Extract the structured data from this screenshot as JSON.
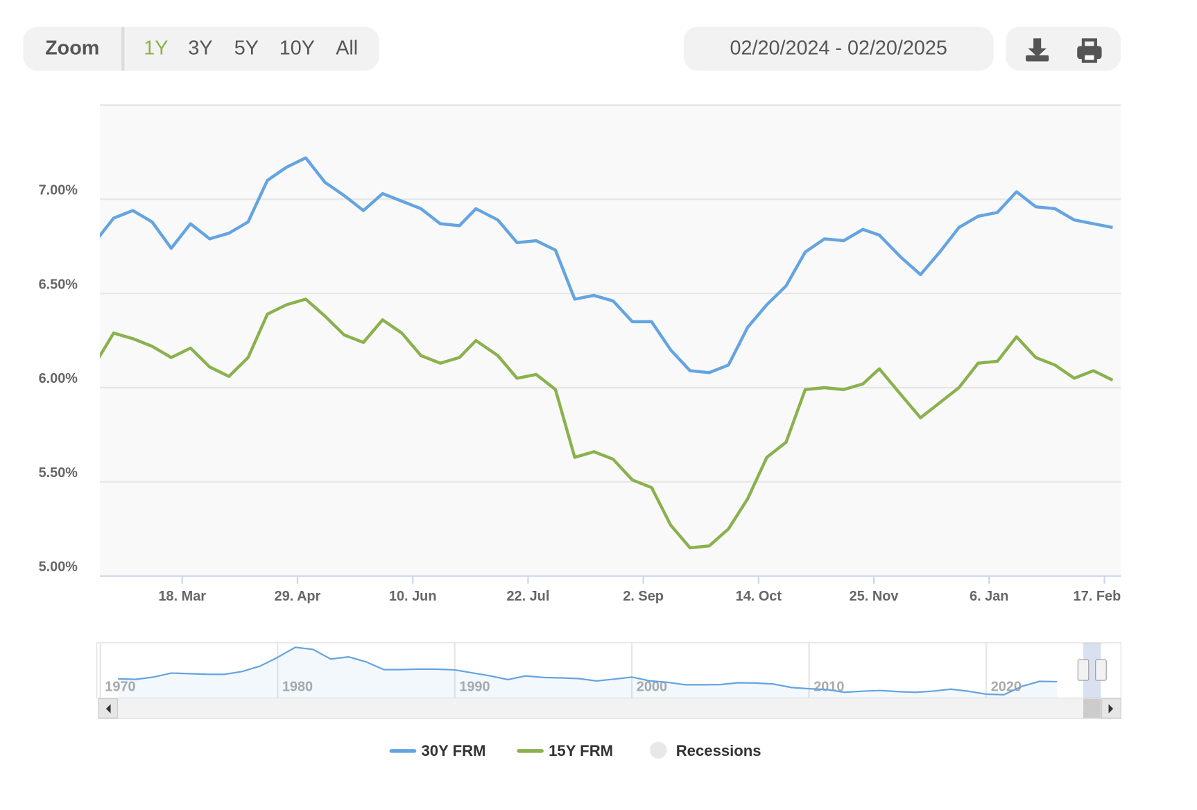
{
  "toolbar": {
    "zoom_label": "Zoom",
    "zoom_buttons": [
      "1Y",
      "3Y",
      "5Y",
      "10Y",
      "All"
    ],
    "selected": "1Y",
    "selected_color": "#8bb14e",
    "date_range": "02/20/2024 - 02/20/2025"
  },
  "chart_data": {
    "type": "line",
    "x": [
      "2024-02-15",
      "2024-02-22",
      "2024-02-29",
      "2024-03-07",
      "2024-03-14",
      "2024-03-21",
      "2024-03-28",
      "2024-04-04",
      "2024-04-11",
      "2024-04-18",
      "2024-04-25",
      "2024-05-02",
      "2024-05-09",
      "2024-05-16",
      "2024-05-23",
      "2024-05-30",
      "2024-06-06",
      "2024-06-13",
      "2024-06-20",
      "2024-06-27",
      "2024-07-03",
      "2024-07-11",
      "2024-07-18",
      "2024-07-25",
      "2024-08-01",
      "2024-08-08",
      "2024-08-15",
      "2024-08-22",
      "2024-08-29",
      "2024-09-05",
      "2024-09-12",
      "2024-09-19",
      "2024-09-26",
      "2024-10-03",
      "2024-10-10",
      "2024-10-17",
      "2024-10-24",
      "2024-10-31",
      "2024-11-07",
      "2024-11-14",
      "2024-11-21",
      "2024-11-27",
      "2024-12-05",
      "2024-12-12",
      "2024-12-19",
      "2024-12-26",
      "2025-01-02",
      "2025-01-09",
      "2025-01-16",
      "2025-01-23",
      "2025-01-30",
      "2025-02-06",
      "2025-02-13",
      "2025-02-20"
    ],
    "series": [
      {
        "name": "30Y FRM",
        "color": "#64a4e0",
        "values": [
          6.77,
          6.9,
          6.94,
          6.88,
          6.74,
          6.87,
          6.79,
          6.82,
          6.88,
          7.1,
          7.17,
          7.22,
          7.09,
          7.02,
          6.94,
          7.03,
          6.99,
          6.95,
          6.87,
          6.86,
          6.95,
          6.89,
          6.77,
          6.78,
          6.73,
          6.47,
          6.49,
          6.46,
          6.35,
          6.35,
          6.2,
          6.09,
          6.08,
          6.12,
          6.32,
          6.44,
          6.54,
          6.72,
          6.79,
          6.78,
          6.84,
          6.81,
          6.69,
          6.6,
          6.72,
          6.85,
          6.91,
          6.93,
          7.04,
          6.96,
          6.95,
          6.89,
          6.87,
          6.85
        ]
      },
      {
        "name": "15Y FRM",
        "color": "#8bb14e",
        "values": [
          6.12,
          6.29,
          6.26,
          6.22,
          6.16,
          6.21,
          6.11,
          6.06,
          6.16,
          6.39,
          6.44,
          6.47,
          6.38,
          6.28,
          6.24,
          6.36,
          6.29,
          6.17,
          6.13,
          6.16,
          6.25,
          6.17,
          6.05,
          6.07,
          5.99,
          5.63,
          5.66,
          5.62,
          5.51,
          5.47,
          5.27,
          5.15,
          5.16,
          5.25,
          5.41,
          5.63,
          5.71,
          5.99,
          6.0,
          5.99,
          6.02,
          6.1,
          5.96,
          5.84,
          5.92,
          6.0,
          6.13,
          6.14,
          6.27,
          6.16,
          6.12,
          6.05,
          6.09,
          6.04
        ]
      }
    ],
    "recessions": {
      "name": "Recessions",
      "color": "#e8e8e8"
    },
    "xlim": [
      "2024-02-17",
      "2025-02-23"
    ],
    "xticks": [
      {
        "value": "2024-03-18",
        "label": "18. Mar"
      },
      {
        "value": "2024-04-29",
        "label": "29. Apr"
      },
      {
        "value": "2024-06-10",
        "label": "10. Jun"
      },
      {
        "value": "2024-07-22",
        "label": "22. Jul"
      },
      {
        "value": "2024-09-02",
        "label": "2. Sep"
      },
      {
        "value": "2024-10-14",
        "label": "14. Oct"
      },
      {
        "value": "2024-11-25",
        "label": "25. Nov"
      },
      {
        "value": "2025-01-06",
        "label": "6. Jan"
      },
      {
        "value": "2025-02-17",
        "label": "17. Feb"
      }
    ],
    "ylim": [
      5,
      7.5
    ],
    "yticks": [
      {
        "value": 5,
        "label": "5.00%"
      },
      {
        "value": 5.5,
        "label": "5.50%"
      },
      {
        "value": 6,
        "label": "6.00%"
      },
      {
        "value": 6.5,
        "label": "6.50%"
      },
      {
        "value": 7,
        "label": "7.00%"
      }
    ],
    "grid": true,
    "navigator": {
      "x": [
        1971,
        1972,
        1973,
        1974,
        1975,
        1976,
        1977,
        1978,
        1979,
        1980,
        1981,
        1982,
        1983,
        1984,
        1985,
        1986,
        1987,
        1988,
        1989,
        1990,
        1991,
        1992,
        1993,
        1994,
        1995,
        1996,
        1997,
        1998,
        1999,
        2000,
        2001,
        2002,
        2003,
        2004,
        2005,
        2006,
        2007,
        2008,
        2009,
        2010,
        2011,
        2012,
        2013,
        2014,
        2015,
        2016,
        2017,
        2018,
        2019,
        2020,
        2021,
        2022,
        2023,
        2024
      ],
      "values": [
        7.54,
        7.38,
        8.04,
        9.19,
        9.05,
        8.87,
        8.85,
        9.64,
        11.2,
        13.74,
        16.63,
        16.04,
        13.24,
        13.88,
        12.43,
        10.19,
        10.21,
        10.34,
        10.32,
        10.13,
        9.25,
        8.39,
        7.31,
        8.38,
        7.93,
        7.81,
        7.6,
        6.94,
        7.44,
        8.05,
        6.97,
        6.54,
        5.83,
        5.84,
        5.87,
        6.41,
        6.34,
        6.03,
        5.04,
        4.69,
        4.45,
        3.66,
        3.98,
        4.17,
        3.85,
        3.65,
        3.99,
        4.54,
        3.94,
        3.11,
        2.96,
        5.34,
        6.81,
        6.72
      ],
      "color": "#64a4e0",
      "xlim": [
        1969.8,
        2027.6
      ],
      "ylim": [
        2,
        17.5
      ],
      "xticks": [
        1970,
        1980,
        1990,
        2000,
        2010,
        2020
      ]
    }
  }
}
